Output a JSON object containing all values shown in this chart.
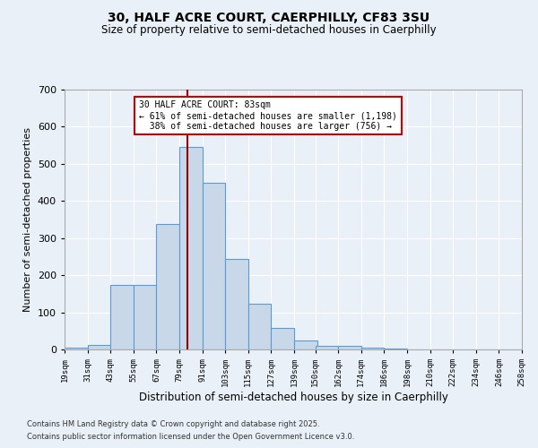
{
  "title_line1": "30, HALF ACRE COURT, CAERPHILLY, CF83 3SU",
  "title_line2": "Size of property relative to semi-detached houses in Caerphilly",
  "xlabel": "Distribution of semi-detached houses by size in Caerphilly",
  "ylabel": "Number of semi-detached properties",
  "bar_edges": [
    19,
    31,
    43,
    55,
    67,
    79,
    91,
    103,
    115,
    127,
    139,
    150,
    162,
    174,
    186,
    198,
    210,
    222,
    234,
    246,
    258
  ],
  "bar_heights": [
    5,
    12,
    175,
    175,
    338,
    545,
    448,
    245,
    123,
    58,
    25,
    10,
    10,
    5,
    3,
    0,
    0,
    0,
    0,
    0
  ],
  "bar_color": "#c8d8e8",
  "bar_edge_color": "#5b9bd5",
  "bg_color": "#eaf0f8",
  "grid_color": "#ffffff",
  "vline_x": 83,
  "vline_color": "#8b0000",
  "annotation_text": "30 HALF ACRE COURT: 83sqm\n← 61% of semi-detached houses are smaller (1,198)\n  38% of semi-detached houses are larger (756) →",
  "annotation_box_color": "#ffffff",
  "annotation_border_color": "#cc0000",
  "footnote1": "Contains HM Land Registry data © Crown copyright and database right 2025.",
  "footnote2": "Contains public sector information licensed under the Open Government Licence v3.0.",
  "tick_labels": [
    "19sqm",
    "31sqm",
    "43sqm",
    "55sqm",
    "67sqm",
    "79sqm",
    "91sqm",
    "103sqm",
    "115sqm",
    "127sqm",
    "139sqm",
    "150sqm",
    "162sqm",
    "174sqm",
    "186sqm",
    "198sqm",
    "210sqm",
    "222sqm",
    "234sqm",
    "246sqm",
    "258sqm"
  ],
  "ylim": [
    0,
    700
  ],
  "yticks": [
    0,
    100,
    200,
    300,
    400,
    500,
    600,
    700
  ]
}
